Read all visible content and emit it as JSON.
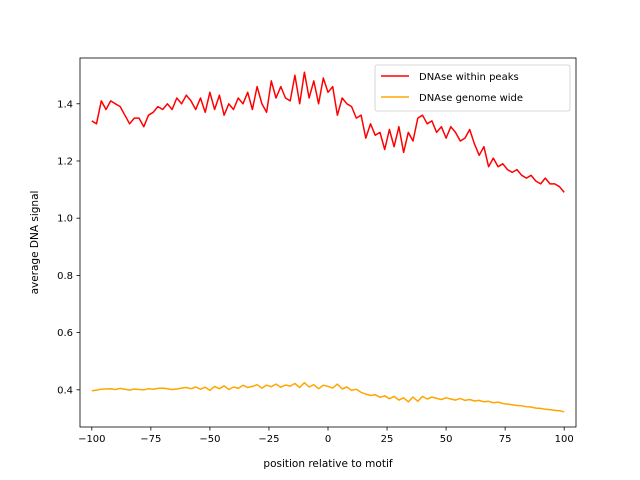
{
  "chart_data": {
    "type": "line",
    "title": "",
    "xlabel": "position relative to motif",
    "ylabel": "average DNA signal",
    "xlim": [
      -105,
      105
    ],
    "ylim": [
      0.27,
      1.56
    ],
    "xticks": [
      -100,
      -75,
      -50,
      -25,
      0,
      25,
      50,
      75,
      100
    ],
    "xtick_labels": [
      "−100",
      "−75",
      "−50",
      "−25",
      "0",
      "25",
      "50",
      "75",
      "100"
    ],
    "yticks": [
      0.4,
      0.6,
      0.8,
      1.0,
      1.2,
      1.4
    ],
    "ytick_labels": [
      "0.4",
      "0.6",
      "0.8",
      "1.0",
      "1.2",
      "1.4"
    ],
    "legend_position": "top-right",
    "series": [
      {
        "name": "DNAse within peaks",
        "color": "#ff0000",
        "x": [
          -100,
          -98,
          -96,
          -94,
          -92,
          -90,
          -88,
          -86,
          -84,
          -82,
          -80,
          -78,
          -76,
          -74,
          -72,
          -70,
          -68,
          -66,
          -64,
          -62,
          -60,
          -58,
          -56,
          -54,
          -52,
          -50,
          -48,
          -46,
          -44,
          -42,
          -40,
          -38,
          -36,
          -34,
          -32,
          -30,
          -28,
          -26,
          -24,
          -22,
          -20,
          -18,
          -16,
          -14,
          -12,
          -10,
          -8,
          -6,
          -4,
          -2,
          0,
          2,
          4,
          6,
          8,
          10,
          12,
          14,
          16,
          18,
          20,
          22,
          24,
          26,
          28,
          30,
          32,
          34,
          36,
          38,
          40,
          42,
          44,
          46,
          48,
          50,
          52,
          54,
          56,
          58,
          60,
          62,
          64,
          66,
          68,
          70,
          72,
          74,
          76,
          78,
          80,
          82,
          84,
          86,
          88,
          90,
          92,
          94,
          96,
          98,
          100
        ],
        "values": [
          1.34,
          1.33,
          1.41,
          1.38,
          1.41,
          1.4,
          1.39,
          1.36,
          1.33,
          1.35,
          1.35,
          1.32,
          1.36,
          1.37,
          1.39,
          1.38,
          1.4,
          1.38,
          1.42,
          1.4,
          1.43,
          1.41,
          1.38,
          1.42,
          1.37,
          1.44,
          1.38,
          1.43,
          1.36,
          1.4,
          1.38,
          1.42,
          1.4,
          1.44,
          1.38,
          1.46,
          1.4,
          1.37,
          1.48,
          1.42,
          1.46,
          1.42,
          1.41,
          1.5,
          1.4,
          1.51,
          1.42,
          1.48,
          1.4,
          1.49,
          1.44,
          1.46,
          1.36,
          1.42,
          1.4,
          1.39,
          1.35,
          1.36,
          1.28,
          1.33,
          1.29,
          1.3,
          1.24,
          1.31,
          1.25,
          1.32,
          1.23,
          1.3,
          1.27,
          1.35,
          1.36,
          1.33,
          1.34,
          1.3,
          1.32,
          1.28,
          1.32,
          1.3,
          1.27,
          1.28,
          1.31,
          1.26,
          1.22,
          1.25,
          1.18,
          1.21,
          1.18,
          1.19,
          1.17,
          1.16,
          1.17,
          1.15,
          1.14,
          1.15,
          1.13,
          1.12,
          1.14,
          1.12,
          1.12,
          1.11,
          1.09
        ]
      },
      {
        "name": "DNAse genome wide",
        "color": "#ffa500",
        "x": [
          -100,
          -98,
          -96,
          -94,
          -92,
          -90,
          -88,
          -86,
          -84,
          -82,
          -80,
          -78,
          -76,
          -74,
          -72,
          -70,
          -68,
          -66,
          -64,
          -62,
          -60,
          -58,
          -56,
          -54,
          -52,
          -50,
          -48,
          -46,
          -44,
          -42,
          -40,
          -38,
          -36,
          -34,
          -32,
          -30,
          -28,
          -26,
          -24,
          -22,
          -20,
          -18,
          -16,
          -14,
          -12,
          -10,
          -8,
          -6,
          -4,
          -2,
          0,
          2,
          4,
          6,
          8,
          10,
          12,
          14,
          16,
          18,
          20,
          22,
          24,
          26,
          28,
          30,
          32,
          34,
          36,
          38,
          40,
          42,
          44,
          46,
          48,
          50,
          52,
          54,
          56,
          58,
          60,
          62,
          64,
          66,
          68,
          70,
          72,
          74,
          76,
          78,
          80,
          82,
          84,
          86,
          88,
          90,
          92,
          94,
          96,
          98,
          100
        ],
        "values": [
          0.397,
          0.399,
          0.402,
          0.403,
          0.404,
          0.401,
          0.405,
          0.402,
          0.399,
          0.403,
          0.401,
          0.4,
          0.404,
          0.402,
          0.405,
          0.406,
          0.404,
          0.401,
          0.403,
          0.406,
          0.408,
          0.404,
          0.41,
          0.402,
          0.409,
          0.398,
          0.412,
          0.404,
          0.414,
          0.401,
          0.41,
          0.405,
          0.416,
          0.408,
          0.412,
          0.418,
          0.406,
          0.416,
          0.411,
          0.42,
          0.409,
          0.417,
          0.413,
          0.422,
          0.408,
          0.425,
          0.41,
          0.418,
          0.404,
          0.416,
          0.412,
          0.406,
          0.42,
          0.403,
          0.41,
          0.398,
          0.402,
          0.391,
          0.385,
          0.38,
          0.383,
          0.374,
          0.379,
          0.369,
          0.377,
          0.364,
          0.372,
          0.358,
          0.375,
          0.36,
          0.377,
          0.368,
          0.375,
          0.37,
          0.366,
          0.372,
          0.368,
          0.364,
          0.37,
          0.363,
          0.366,
          0.361,
          0.363,
          0.358,
          0.36,
          0.355,
          0.357,
          0.352,
          0.35,
          0.348,
          0.345,
          0.344,
          0.341,
          0.34,
          0.336,
          0.335,
          0.332,
          0.331,
          0.328,
          0.327,
          0.323
        ]
      }
    ]
  }
}
